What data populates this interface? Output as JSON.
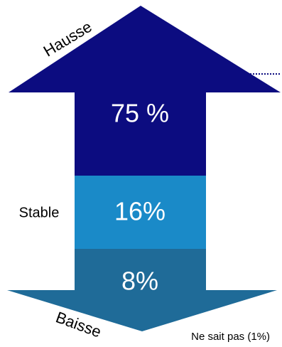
{
  "chart_data": {
    "type": "arrow",
    "categories": [
      "Hausse",
      "Stable",
      "Baisse"
    ],
    "values": [
      75,
      16,
      8
    ],
    "value_labels": [
      "75 %",
      "16%",
      "8%"
    ],
    "colors": [
      "#0c0c80",
      "#1a8ac8",
      "#1f6b98"
    ],
    "note": "Ne sait pas (1%)"
  }
}
